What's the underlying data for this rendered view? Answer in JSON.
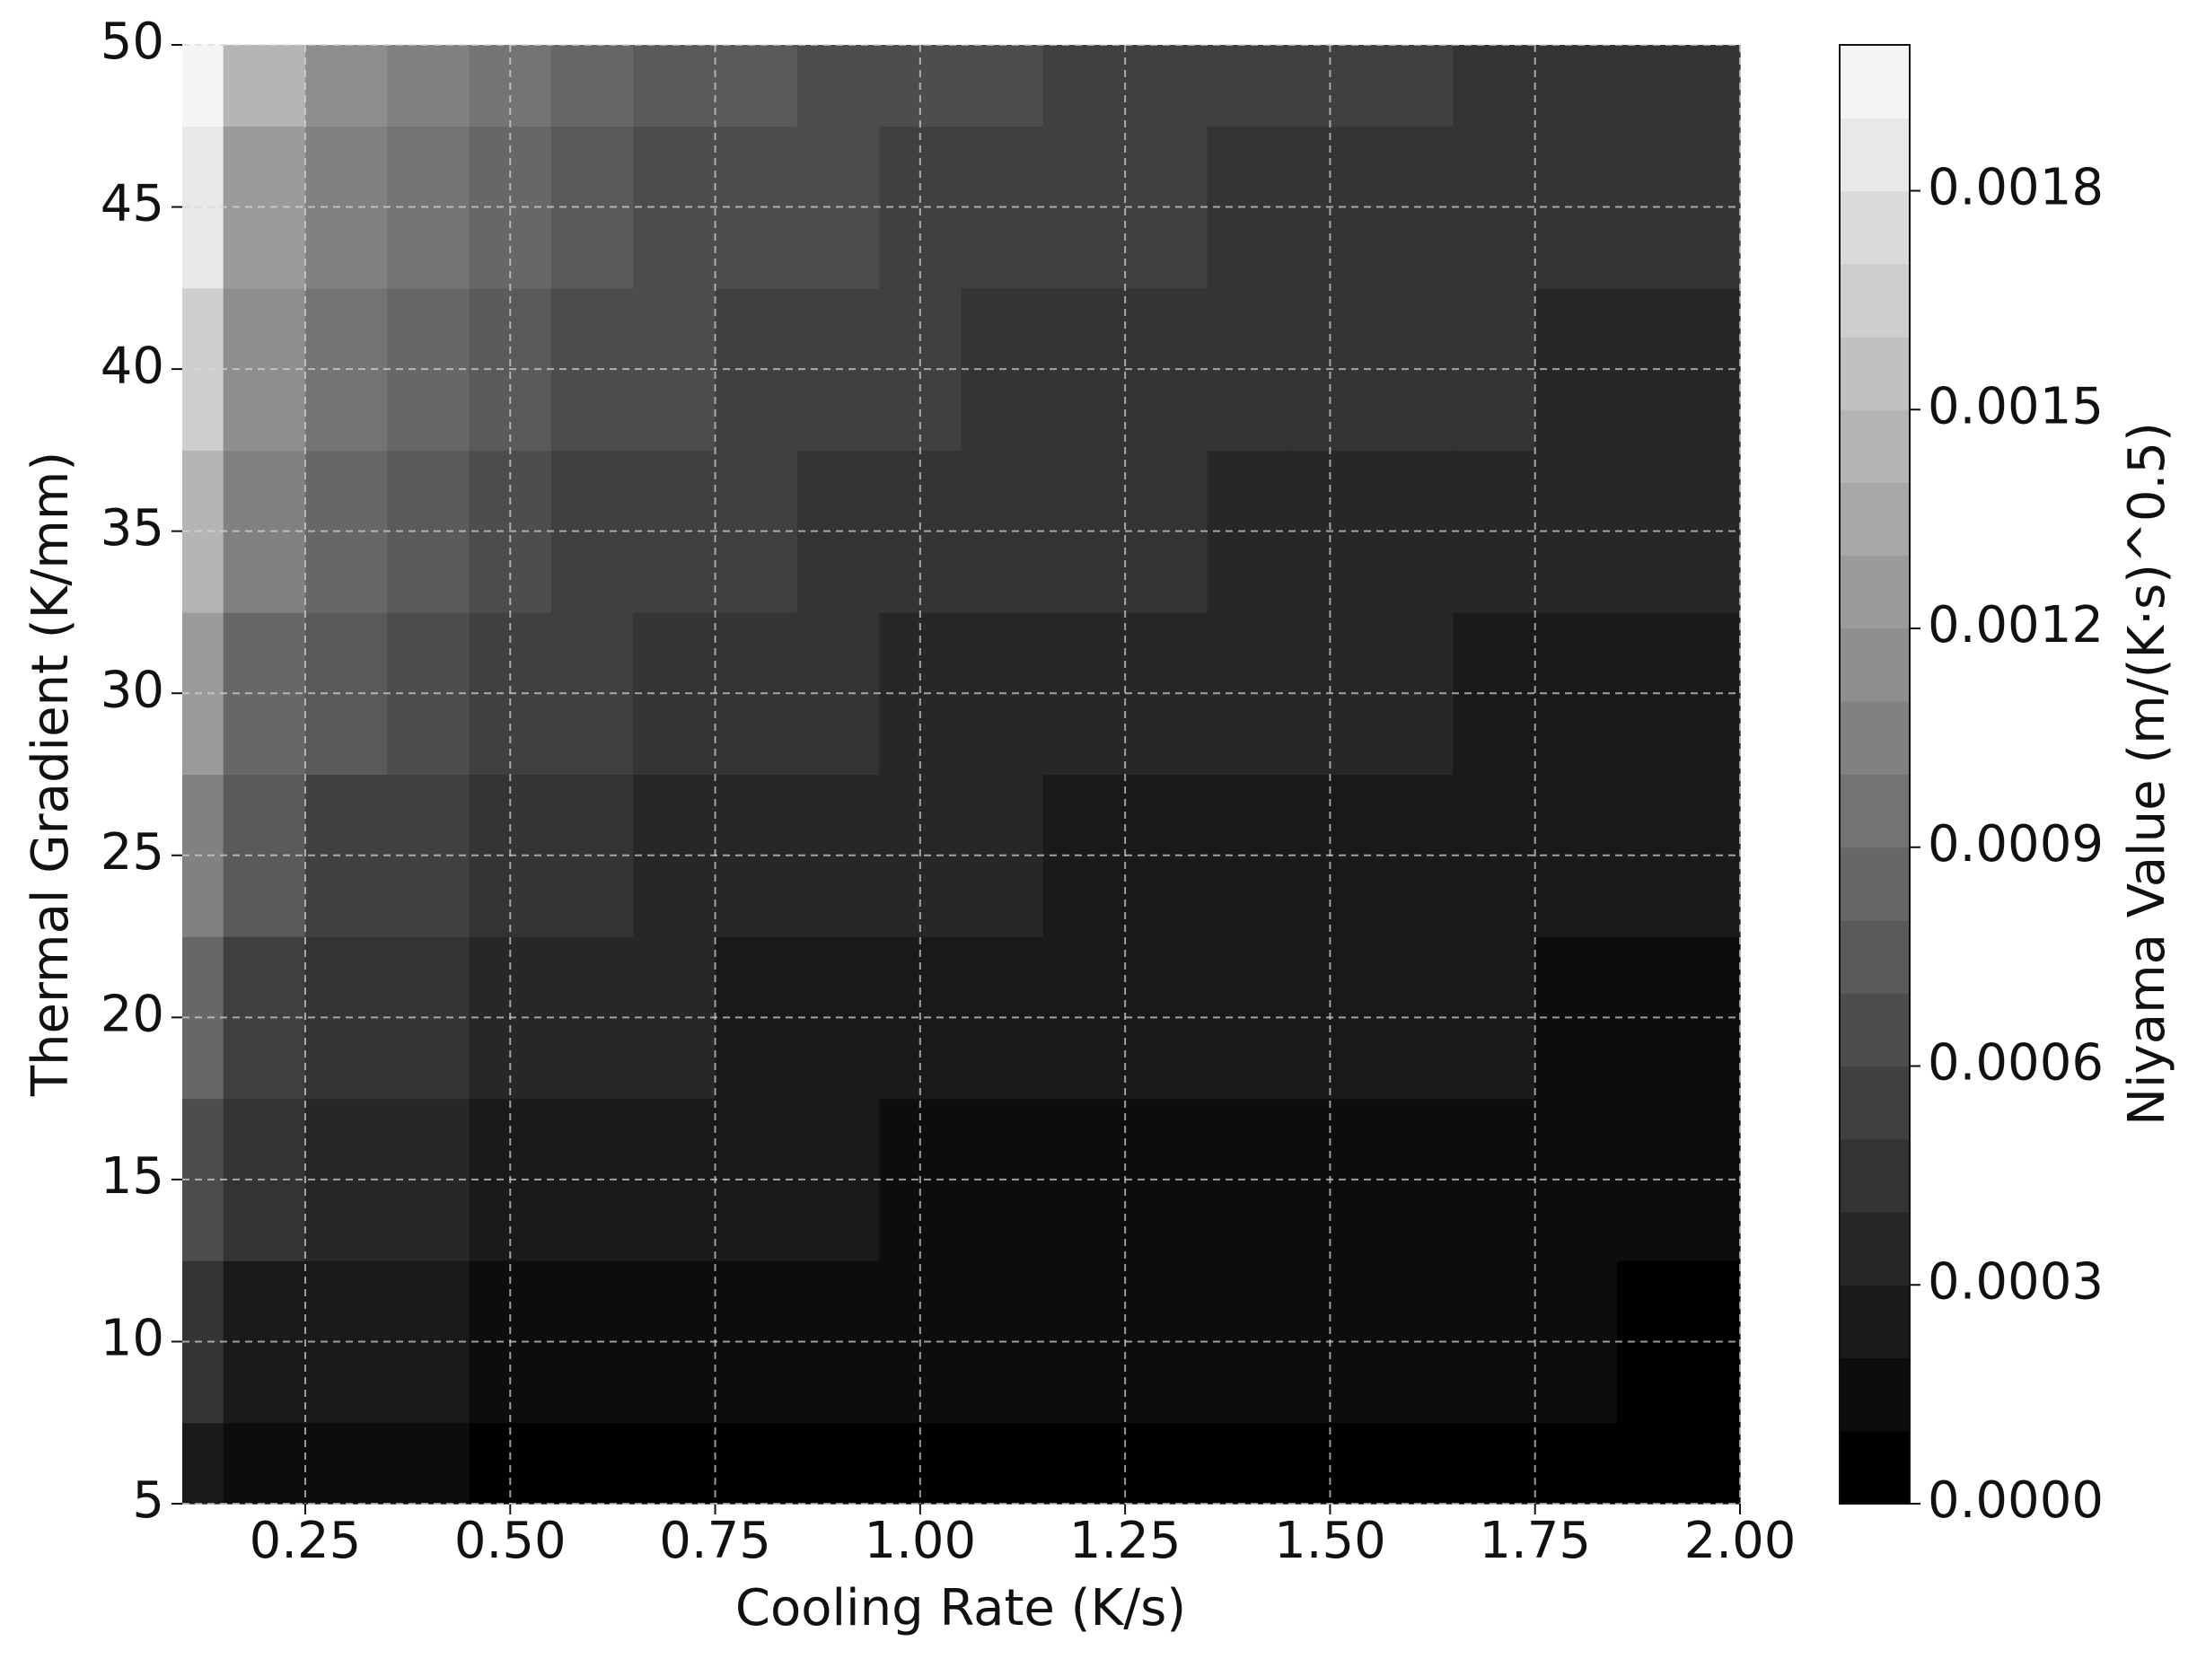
{
  "chart_data": {
    "type": "contourf",
    "x_label": "Cooling Rate (K/s)",
    "y_label": "Thermal Gradient (K/mm)",
    "colorbar_label": "Niyama Value (m/(K·s)^0.5)",
    "x": [
      0.1,
      0.2,
      0.3,
      0.4,
      0.5,
      0.6,
      0.7,
      0.8,
      0.9,
      1.0,
      1.1,
      1.2,
      1.3,
      1.4,
      1.5,
      1.6,
      1.7,
      1.8,
      1.9,
      2.0
    ],
    "y": [
      5,
      10,
      15,
      20,
      25,
      30,
      35,
      40,
      45,
      50
    ],
    "z": [
      [
        0.0002,
        0.00014,
        0.00012,
        0.0001,
        9e-05,
        8e-05,
        8e-05,
        7e-05,
        7e-05,
        6e-05,
        6e-05,
        6e-05,
        6e-05,
        5e-05,
        5e-05,
        5e-05,
        5e-05,
        5e-05,
        5e-05,
        5e-05
      ],
      [
        0.00041,
        0.00029,
        0.00024,
        0.0002,
        0.00018,
        0.00017,
        0.00015,
        0.00014,
        0.00014,
        0.00013,
        0.00012,
        0.00012,
        0.00011,
        0.00011,
        0.00011,
        0.0001,
        0.0001,
        0.0001,
        9e-05,
        9e-05
      ],
      [
        0.00061,
        0.00043,
        0.00035,
        0.00031,
        0.00027,
        0.00025,
        0.00023,
        0.00022,
        0.0002,
        0.00019,
        0.00018,
        0.00018,
        0.00017,
        0.00016,
        0.00016,
        0.00015,
        0.00015,
        0.00014,
        0.00014,
        0.00014
      ],
      [
        0.00082,
        0.00058,
        0.00047,
        0.00041,
        0.00036,
        0.00033,
        0.00031,
        0.00029,
        0.00027,
        0.00026,
        0.00025,
        0.00024,
        0.00023,
        0.00022,
        0.00021,
        0.0002,
        0.0002,
        0.00019,
        0.00019,
        0.00018
      ],
      [
        0.00102,
        0.00072,
        0.00059,
        0.00051,
        0.00046,
        0.00042,
        0.00039,
        0.00036,
        0.00034,
        0.00032,
        0.00031,
        0.00029,
        0.00028,
        0.00027,
        0.00026,
        0.00025,
        0.00025,
        0.00024,
        0.00023,
        0.00023
      ],
      [
        0.00122,
        0.00087,
        0.00071,
        0.00061,
        0.00055,
        0.0005,
        0.00046,
        0.00043,
        0.00041,
        0.00039,
        0.00037,
        0.00035,
        0.00034,
        0.00033,
        0.00032,
        0.00031,
        0.0003,
        0.00029,
        0.00028,
        0.00027
      ],
      [
        0.00143,
        0.00101,
        0.00082,
        0.00071,
        0.00064,
        0.00058,
        0.00054,
        0.0005,
        0.00048,
        0.00045,
        0.00043,
        0.00041,
        0.0004,
        0.00038,
        0.00037,
        0.00036,
        0.00035,
        0.00034,
        0.00033,
        0.00032
      ],
      [
        0.00163,
        0.00115,
        0.00094,
        0.00082,
        0.00073,
        0.00067,
        0.00062,
        0.00058,
        0.00054,
        0.00052,
        0.00049,
        0.00047,
        0.00045,
        0.00044,
        0.00042,
        0.00041,
        0.0004,
        0.00038,
        0.00037,
        0.00036
      ],
      [
        0.00184,
        0.0013,
        0.00106,
        0.00092,
        0.00082,
        0.00075,
        0.00069,
        0.00065,
        0.00061,
        0.00058,
        0.00055,
        0.00053,
        0.00051,
        0.00049,
        0.00047,
        0.00046,
        0.00045,
        0.00043,
        0.00042,
        0.00041
      ],
      [
        0.00204,
        0.00144,
        0.00118,
        0.00102,
        0.00091,
        0.00083,
        0.00077,
        0.00072,
        0.00068,
        0.00065,
        0.00062,
        0.00059,
        0.00057,
        0.00055,
        0.00053,
        0.00051,
        0.00049,
        0.00048,
        0.00047,
        0.00046
      ]
    ],
    "xlim": [
      0.1,
      2.0
    ],
    "ylim": [
      5,
      50
    ],
    "xticks": [
      0.25,
      {
        "value": 0.5,
        "label": "0.50"
      },
      0.75,
      {
        "value": 1.0,
        "label": "1.00"
      },
      1.25,
      {
        "value": 1.5,
        "label": "1.50"
      },
      1.75,
      {
        "value": 2.0,
        "label": "2.00"
      }
    ],
    "yticks": [
      5,
      10,
      15,
      20,
      25,
      30,
      35,
      40,
      45,
      50
    ],
    "colorbar_lim": [
      0,
      0.002
    ],
    "colorbar_ticks": [
      {
        "value": 0,
        "label": "0.0000"
      },
      {
        "value": 0.0003,
        "label": "0.0003"
      },
      {
        "value": 0.0006,
        "label": "0.0006"
      },
      {
        "value": 0.0009,
        "label": "0.0009"
      },
      {
        "value": 0.0012,
        "label": "0.0012"
      },
      {
        "value": 0.0015,
        "label": "0.0015"
      },
      {
        "value": 0.0018,
        "label": "0.0018"
      }
    ],
    "levels": 20,
    "colormap": "gray",
    "grid": true
  }
}
